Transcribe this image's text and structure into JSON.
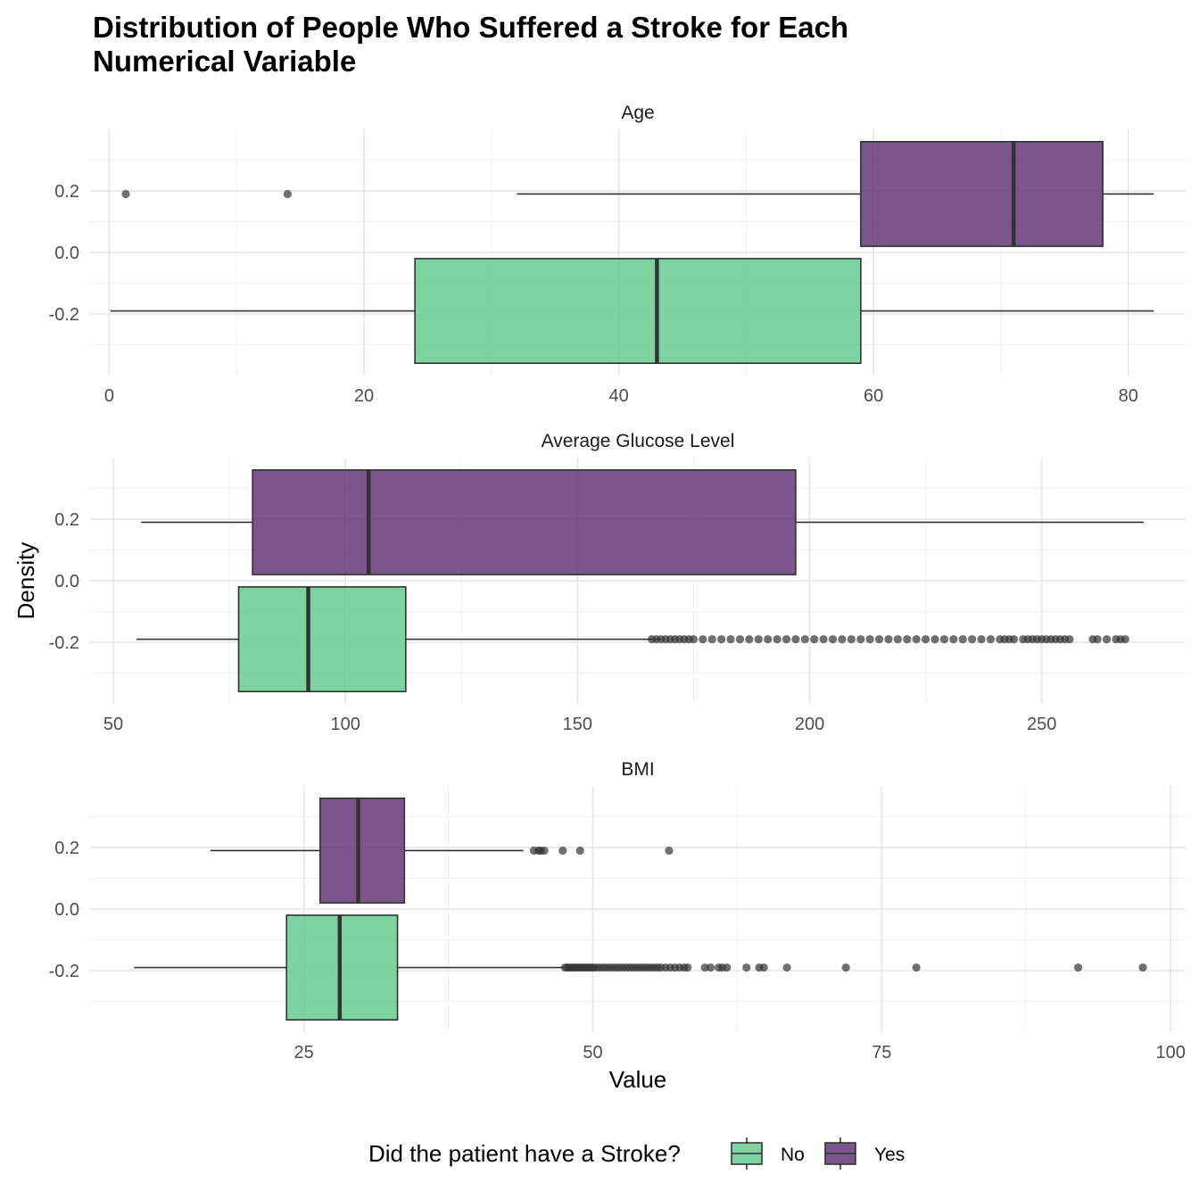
{
  "chart_data": {
    "type": "boxplot",
    "title_lines": [
      "Distribution of People Who Suffered a Stroke for Each",
      "Numerical Variable"
    ],
    "xlabel": "Value",
    "ylabel": "Density",
    "legend": {
      "title": "Did the patient have a Stroke?",
      "placement": "bottom",
      "entries": [
        {
          "label": "No",
          "color": "#5ec98a"
        },
        {
          "label": "Yes",
          "color": "#5a2a6e"
        }
      ]
    },
    "y_ticks": [
      0.2,
      0.0,
      -0.2
    ],
    "y_tick_labels": [
      "0.2",
      "0.0",
      "-0.2"
    ],
    "ylim": [
      -0.4,
      0.4
    ],
    "grid": true,
    "panels": [
      {
        "name": "Age",
        "xlim": [
          -1.5,
          84.5
        ],
        "x_ticks": [
          0,
          20,
          40,
          60,
          80
        ],
        "x_tick_labels": [
          "0",
          "20",
          "40",
          "60",
          "80"
        ],
        "boxes": [
          {
            "group": "Yes",
            "y": 0.19,
            "whisker_low": 32,
            "q1": 59,
            "median": 71,
            "q3": 78,
            "whisker_high": 82,
            "outliers": [
              1.3,
              14
            ]
          },
          {
            "group": "No",
            "y": -0.19,
            "whisker_low": 0.1,
            "q1": 24,
            "median": 43,
            "q3": 59,
            "whisker_high": 82,
            "outliers": []
          }
        ]
      },
      {
        "name": "Average Glucose Level",
        "xlim": [
          45,
          281
        ],
        "x_ticks": [
          50,
          100,
          150,
          200,
          250
        ],
        "x_tick_labels": [
          "50",
          "100",
          "150",
          "200",
          "250"
        ],
        "boxes": [
          {
            "group": "Yes",
            "y": 0.19,
            "whisker_low": 56,
            "q1": 80,
            "median": 105,
            "q3": 197,
            "whisker_high": 272,
            "outliers": []
          },
          {
            "group": "No",
            "y": -0.19,
            "whisker_low": 55,
            "q1": 77,
            "median": 92,
            "q3": 113,
            "whisker_high": 168,
            "outliers": [
              166,
              167,
              168,
              169,
              170,
              171,
              172,
              173,
              174,
              175,
              177,
              179,
              181,
              183,
              185,
              187,
              189,
              191,
              193,
              195,
              197,
              199,
              201,
              203,
              205,
              207,
              209,
              211,
              213,
              215,
              217,
              219,
              221,
              223,
              225,
              227,
              229,
              231,
              233,
              235,
              237,
              239,
              241,
              242,
              243,
              244,
              246,
              247,
              248,
              249,
              250,
              251,
              252,
              253,
              254,
              255,
              256,
              261,
              262,
              264,
              266,
              267,
              268
            ]
          }
        ]
      },
      {
        "name": "BMI",
        "xlim": [
          6.5,
          101.3
        ],
        "x_ticks": [
          25,
          50,
          75,
          100
        ],
        "x_tick_labels": [
          "25",
          "50",
          "75",
          "100"
        ],
        "boxes": [
          {
            "group": "Yes",
            "y": 0.19,
            "whisker_low": 16.9,
            "q1": 26.4,
            "median": 29.7,
            "q3": 33.7,
            "whisker_high": 44.0,
            "outliers": [
              44.9,
              45.3,
              45.5,
              45.8,
              47.4,
              48.9,
              56.6
            ]
          },
          {
            "group": "No",
            "y": -0.19,
            "whisker_low": 10.3,
            "q1": 23.5,
            "median": 28.1,
            "q3": 33.1,
            "whisker_high": 47.5,
            "outliers": [
              47.6,
              47.8,
              48.0,
              48.2,
              48.4,
              48.6,
              48.8,
              49.0,
              49.2,
              49.4,
              49.6,
              49.8,
              50.0,
              50.2,
              50.5,
              50.8,
              51.1,
              51.4,
              51.7,
              52.0,
              52.3,
              52.6,
              52.9,
              53.2,
              53.5,
              53.8,
              54.1,
              54.4,
              54.7,
              55.0,
              55.3,
              55.6,
              55.9,
              56.3,
              56.7,
              57.1,
              57.5,
              57.9,
              58.2,
              59.7,
              60.2,
              60.9,
              61.2,
              61.6,
              63.3,
              64.4,
              64.8,
              66.8,
              71.9,
              78.0,
              92.0,
              97.6
            ]
          }
        ]
      }
    ]
  }
}
